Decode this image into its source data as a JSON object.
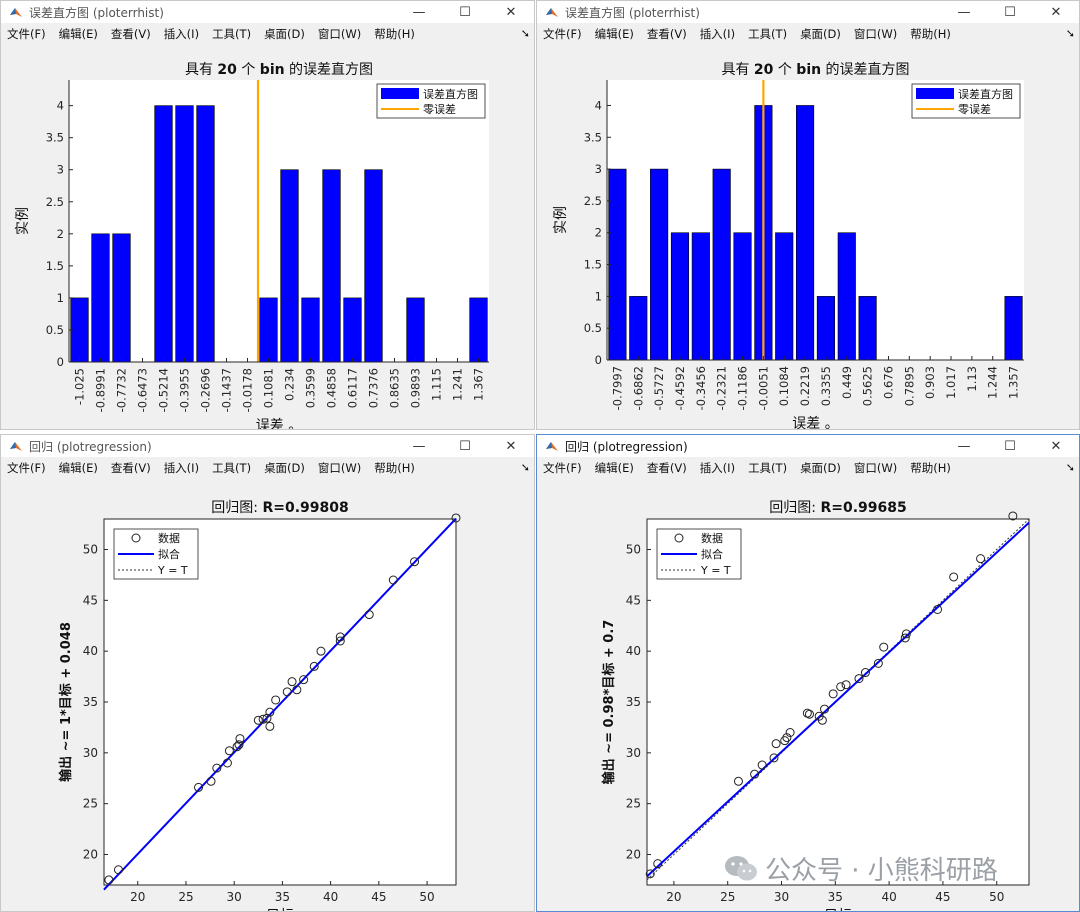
{
  "windows": [
    {
      "title": "误差直方图 (ploterrhist)",
      "plot": {
        "title_parts": [
          "具有 ",
          "20",
          " 个 ",
          "bin",
          " 的误差直方图"
        ],
        "ylabel": "实例",
        "xlabel": "误差 。",
        "legend": [
          "误差直方图",
          "零误差"
        ]
      }
    },
    {
      "title": "误差直方图 (ploterrhist)",
      "plot": {
        "title_parts": [
          "具有 ",
          "20",
          " 个 ",
          "bin",
          " 的误差直方图"
        ],
        "ylabel": "实例",
        "xlabel": "误差 。",
        "legend": [
          "误差直方图",
          "零误差"
        ]
      }
    },
    {
      "title": "回归 (plotregression)",
      "plot": {
        "title_parts": [
          "回归图: ",
          "R=0.99808"
        ],
        "ylabel": "输出 ~= 1*目标 + 0.048",
        "xlabel": "目标",
        "legend": [
          "数据",
          "拟合",
          "Y = T"
        ]
      }
    },
    {
      "title": "回归 (plotregression)",
      "plot": {
        "title_parts": [
          "回归图: ",
          "R=0.99685"
        ],
        "ylabel": "输出 ~= 0.98*目标 + 0.7",
        "xlabel": "目标",
        "legend": [
          "数据",
          "拟合",
          "Y = T"
        ]
      }
    }
  ],
  "menu": [
    "文件(F)",
    "编辑(E)",
    "查看(V)",
    "插入(I)",
    "工具(T)",
    "桌面(D)",
    "窗口(W)",
    "帮助(H)"
  ],
  "window_controls": [
    "—",
    "☐",
    "✕"
  ],
  "watermark": "公众号 · 小熊科研路",
  "colors": {
    "bar": "#0000ff",
    "zero_line": "#ffa500",
    "fit": "#0000ff"
  },
  "chart_data": [
    {
      "type": "bar",
      "title": "具有 20 个 bin 的误差直方图",
      "xlabel": "误差 。",
      "ylabel": "实例",
      "categories": [
        "-1.025",
        "-0.8991",
        "-0.7732",
        "-0.6473",
        "-0.5214",
        "-0.3955",
        "-0.2696",
        "-0.1437",
        "-0.0178",
        "0.1081",
        "0.234",
        "0.3599",
        "0.4858",
        "0.6117",
        "0.7376",
        "0.8635",
        "0.9893",
        "1.115",
        "1.241",
        "1.367"
      ],
      "series": [
        {
          "name": "误差直方图",
          "values": [
            1,
            2,
            2,
            0,
            4,
            4,
            4,
            0,
            0,
            1,
            3,
            1,
            3,
            1,
            3,
            0,
            1,
            0,
            0,
            1
          ]
        }
      ],
      "zero_error_category_index": 8.5,
      "yticks": [
        "0",
        "0.5",
        "1",
        "1.5",
        "2",
        "2.5",
        "3",
        "3.5",
        "4"
      ],
      "ylim": [
        0,
        4.4
      ],
      "legend_position": "top-right"
    },
    {
      "type": "bar",
      "title": "具有 20 个 bin 的误差直方图",
      "xlabel": "误差 。",
      "ylabel": "实例",
      "categories": [
        "-0.7997",
        "-0.6862",
        "-0.5727",
        "-0.4592",
        "-0.3456",
        "-0.2321",
        "-0.1186",
        "-0.0051",
        "0.1084",
        "0.2219",
        "0.3355",
        "0.449",
        "0.5625",
        "0.676",
        "0.7895",
        "0.903",
        "1.017",
        "1.13",
        "1.244",
        "1.357"
      ],
      "series": [
        {
          "name": "误差直方图",
          "values": [
            3,
            1,
            3,
            2,
            2,
            3,
            2,
            4,
            2,
            4,
            1,
            2,
            1,
            0,
            0,
            0,
            0,
            0,
            0,
            1
          ]
        }
      ],
      "zero_error_category_index": 7,
      "yticks": [
        "0",
        "0.5",
        "1",
        "1.5",
        "2",
        "2.5",
        "3",
        "3.5",
        "4"
      ],
      "ylim": [
        0,
        4.4
      ],
      "legend_position": "top-right"
    },
    {
      "type": "scatter",
      "title": "回归图: R=0.99808",
      "xlabel": "目标",
      "ylabel": "输出 ~= 1*目标 + 0.048",
      "xlim": [
        16.5,
        53
      ],
      "ylim": [
        17,
        53
      ],
      "xticks": [
        20,
        25,
        30,
        35,
        40,
        45,
        50
      ],
      "yticks": [
        20,
        25,
        30,
        35,
        40,
        45,
        50
      ],
      "fit": {
        "slope": 1,
        "intercept": 0.048
      },
      "points": [
        [
          17,
          17.5
        ],
        [
          18,
          18.5
        ],
        [
          26.3,
          26.6
        ],
        [
          27.6,
          27.2
        ],
        [
          28.2,
          28.5
        ],
        [
          29.3,
          29
        ],
        [
          29.5,
          30.2
        ],
        [
          30.3,
          30.6
        ],
        [
          30.6,
          31.4
        ],
        [
          30.5,
          30.8
        ],
        [
          32.5,
          33.2
        ],
        [
          33,
          33.3
        ],
        [
          33.4,
          33.4
        ],
        [
          33.7,
          32.6
        ],
        [
          33.7,
          34
        ],
        [
          34.3,
          35.2
        ],
        [
          35.5,
          36
        ],
        [
          36,
          37
        ],
        [
          36.5,
          36.2
        ],
        [
          37.2,
          37.2
        ],
        [
          38.3,
          38.5
        ],
        [
          39,
          40
        ],
        [
          41,
          41
        ],
        [
          41,
          41.4
        ],
        [
          44,
          43.6
        ],
        [
          46.5,
          47
        ],
        [
          48.7,
          48.8
        ],
        [
          53,
          53.1
        ]
      ],
      "legend_position": "top-left"
    },
    {
      "type": "scatter",
      "title": "回归图: R=0.99685",
      "xlabel": "目标",
      "ylabel": "输出 ~= 0.98*目标 + 0.7",
      "xlim": [
        17.5,
        53
      ],
      "ylim": [
        17,
        53
      ],
      "xticks": [
        20,
        25,
        30,
        35,
        40,
        45,
        50
      ],
      "yticks": [
        20,
        25,
        30,
        35,
        40,
        45,
        50
      ],
      "fit": {
        "slope": 0.98,
        "intercept": 0.7
      },
      "points": [
        [
          17.8,
          18.1
        ],
        [
          18.5,
          19.1
        ],
        [
          26,
          27.2
        ],
        [
          27.5,
          27.9
        ],
        [
          28.2,
          28.8
        ],
        [
          29.3,
          29.5
        ],
        [
          29.5,
          30.9
        ],
        [
          30.3,
          31.2
        ],
        [
          30.5,
          31.5
        ],
        [
          30.8,
          32
        ],
        [
          32.4,
          33.9
        ],
        [
          32.6,
          33.8
        ],
        [
          33.5,
          33.6
        ],
        [
          33.8,
          33.2
        ],
        [
          34,
          34.3
        ],
        [
          34.8,
          35.8
        ],
        [
          35.5,
          36.5
        ],
        [
          36,
          36.7
        ],
        [
          37.2,
          37.3
        ],
        [
          37.8,
          37.9
        ],
        [
          39,
          38.8
        ],
        [
          39.5,
          40.4
        ],
        [
          41.5,
          41.3
        ],
        [
          41.6,
          41.7
        ],
        [
          44.5,
          44.1
        ],
        [
          46,
          47.3
        ],
        [
          48.5,
          49.1
        ],
        [
          51.5,
          53.3
        ]
      ],
      "legend_position": "top-left"
    }
  ]
}
